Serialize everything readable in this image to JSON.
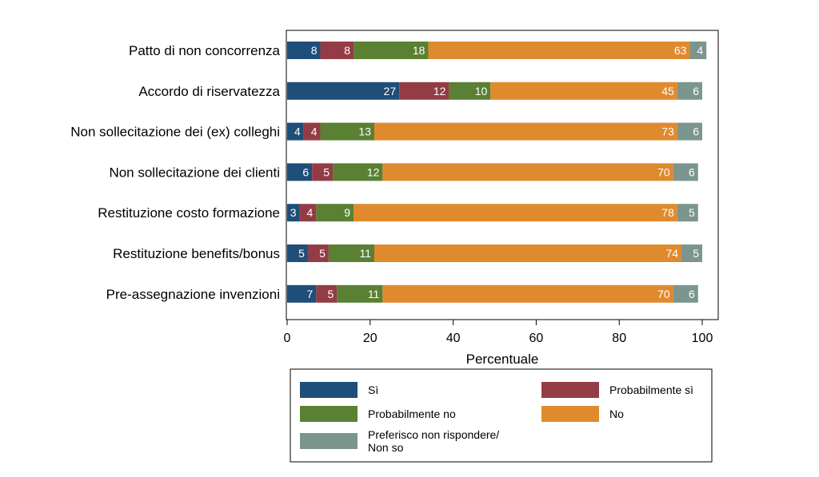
{
  "chart_data": {
    "type": "bar",
    "orientation": "horizontal",
    "stacked": true,
    "categories": [
      "Patto di non concorrenza",
      "Accordo di riservatezza",
      "Non sollecitazione dei (ex) colleghi",
      "Non sollecitazione dei clienti",
      "Restituzione costo formazione",
      "Restituzione benefits/bonus",
      "Pre-assegnazione invenzioni"
    ],
    "series": [
      {
        "name": "Sì",
        "color": "#1f4e79",
        "values": [
          8,
          27,
          4,
          6,
          3,
          5,
          7
        ]
      },
      {
        "name": "Probabilmente sì",
        "color": "#943c46",
        "values": [
          8,
          12,
          4,
          5,
          4,
          5,
          5
        ]
      },
      {
        "name": "Probabilmente no",
        "color": "#5a8034",
        "values": [
          18,
          10,
          13,
          12,
          9,
          11,
          11
        ]
      },
      {
        "name": "No",
        "color": "#e08a2e",
        "values": [
          63,
          45,
          73,
          70,
          78,
          74,
          70
        ]
      },
      {
        "name": "Preferisco non rispondere/ Non so",
        "color": "#7b958f",
        "values": [
          4,
          6,
          6,
          6,
          5,
          5,
          6
        ]
      }
    ],
    "xlabel": "Percentuale",
    "ylabel": "",
    "title": "",
    "xlim": [
      0,
      100
    ],
    "xticks": [
      0,
      20,
      40,
      60,
      80,
      100
    ],
    "grid": false,
    "legend_position": "bottom",
    "legend_columns": 2,
    "legend_lines": [
      [
        "Sì"
      ],
      [
        "Probabilmente sì"
      ],
      [
        "Probabilmente no"
      ],
      [
        "No"
      ],
      [
        "Preferisco non rispondere/",
        "Non so"
      ]
    ]
  }
}
